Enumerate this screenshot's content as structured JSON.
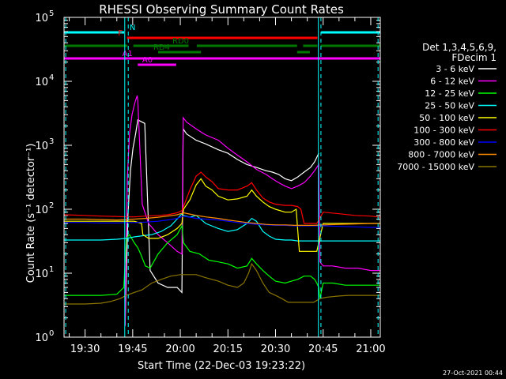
{
  "chart_data": {
    "type": "line",
    "title": "RHESSI Observing Summary Count Rates",
    "xlabel": "Start Time (22-Dec-03 19:23:22)",
    "ylabel": "Count Rate (s⁻¹ detector⁻¹)",
    "y_scale": "log",
    "ylim": [
      1,
      100000
    ],
    "xlim_minutes_of_day": [
      1163.37,
      1263.0
    ],
    "x_ticks": [
      {
        "label": "19:30",
        "m": 1170
      },
      {
        "label": "19:45",
        "m": 1185
      },
      {
        "label": "20:00",
        "m": 1200
      },
      {
        "label": "20:15",
        "m": 1215
      },
      {
        "label": "20:30",
        "m": 1230
      },
      {
        "label": "20:45",
        "m": 1245
      },
      {
        "label": "21:00",
        "m": 1260
      }
    ],
    "y_ticks": [
      {
        "base": "10",
        "exp": "0",
        "v": 1
      },
      {
        "base": "10",
        "exp": "1",
        "v": 10
      },
      {
        "base": "10",
        "exp": "2",
        "v": 100
      },
      {
        "base": "10",
        "exp": "3",
        "v": 1000
      },
      {
        "base": "10",
        "exp": "4",
        "v": 10000
      },
      {
        "base": "10",
        "exp": "5",
        "v": 100000
      }
    ],
    "legend_header": [
      "Det 1,3,4,5,6,9,",
      "FDecim 1"
    ],
    "series": [
      {
        "name": "3 - 6 keV",
        "color": "#ffffff",
        "x": [
          1182.6,
          1183.5,
          1184.3,
          1185.1,
          1185.9,
          1186.6,
          1188.8,
          1190.5,
          1193,
          1196,
          1199,
          1200.5,
          1200.9,
          1202,
          1205,
          1208,
          1212,
          1215,
          1218,
          1221,
          1224,
          1227,
          1229,
          1231,
          1233,
          1235,
          1237,
          1239,
          1241,
          1242.3,
          1243,
          1243.6
        ],
        "y": [
          1.5,
          80,
          400,
          900,
          1500,
          2500,
          2200,
          11,
          7,
          6,
          6,
          5,
          1800,
          1500,
          1200,
          1050,
          850,
          750,
          600,
          500,
          450,
          400,
          380,
          350,
          300,
          280,
          320,
          380,
          450,
          550,
          650,
          750
        ]
      },
      {
        "name": "6 - 12 keV",
        "color": "#ff00ff",
        "x": [
          1182.6,
          1183.3,
          1184,
          1184.8,
          1185.6,
          1186.4,
          1186.6,
          1188,
          1190,
          1193,
          1196,
          1199,
          1200.5,
          1200.9,
          1202,
          1205,
          1208,
          1212,
          1215,
          1218,
          1221,
          1224,
          1227,
          1229,
          1231,
          1233,
          1235,
          1237,
          1239,
          1241,
          1242.3,
          1243,
          1243.6,
          1244,
          1245,
          1248,
          1252,
          1256,
          1260,
          1263
        ],
        "y": [
          1.5,
          300,
          1500,
          3000,
          4500,
          6000,
          5000,
          120,
          60,
          40,
          30,
          22,
          20,
          2700,
          2300,
          1800,
          1450,
          1200,
          900,
          700,
          550,
          420,
          350,
          300,
          260,
          230,
          210,
          230,
          260,
          330,
          400,
          450,
          500,
          15,
          13,
          13,
          12,
          12,
          11,
          11
        ]
      },
      {
        "name": "12 - 25 keV",
        "color": "#00ff00",
        "x": [
          1163.37,
          1170,
          1175,
          1180,
          1182.2,
          1183,
          1184,
          1185.5,
          1186.6,
          1187.5,
          1189,
          1190.5,
          1193,
          1196,
          1199,
          1200.5,
          1201,
          1203,
          1206,
          1209,
          1212,
          1215,
          1218,
          1221,
          1222.5,
          1224,
          1226,
          1228,
          1230,
          1233,
          1235,
          1237,
          1239,
          1241,
          1242.3,
          1243,
          1243.6,
          1244,
          1245,
          1248,
          1252,
          1256,
          1260,
          1263
        ],
        "y": [
          4.5,
          4.5,
          4.5,
          4.7,
          6,
          35,
          40,
          30,
          25,
          20,
          13,
          12,
          20,
          30,
          40,
          55,
          30,
          22,
          20,
          16,
          15,
          14,
          12,
          13,
          17,
          14,
          11,
          9,
          7.5,
          7,
          7.5,
          8,
          9,
          9,
          8,
          7,
          6,
          4,
          7,
          7,
          6.5,
          6.5,
          6.5,
          6.5
        ]
      },
      {
        "name": "25 - 50 keV",
        "color": "#00ffff",
        "x": [
          1163.37,
          1170,
          1175,
          1180,
          1183,
          1185.5,
          1189,
          1191,
          1194,
          1197,
          1199,
          1200.5,
          1201,
          1203,
          1205,
          1208,
          1212,
          1215,
          1218,
          1221,
          1222.5,
          1224,
          1226,
          1228,
          1230,
          1233,
          1235,
          1237,
          1239,
          1241,
          1243,
          1245,
          1250,
          1255,
          1260,
          1263
        ],
        "y": [
          33,
          33,
          33,
          34,
          35,
          37,
          39,
          40,
          45,
          55,
          70,
          85,
          80,
          75,
          80,
          60,
          50,
          45,
          48,
          60,
          72,
          65,
          45,
          38,
          34,
          33,
          33,
          32,
          32,
          32,
          32,
          32,
          32,
          32,
          32,
          32
        ]
      },
      {
        "name": "50 - 100 keV",
        "color": "#ffff00",
        "x": [
          1163.37,
          1170,
          1175,
          1180,
          1183,
          1185.5,
          1187.8,
          1188.2,
          1190,
          1193,
          1196,
          1199,
          1200.5,
          1201,
          1203,
          1205,
          1206.5,
          1208,
          1210,
          1212,
          1215,
          1218,
          1221,
          1222.5,
          1224,
          1226,
          1228,
          1230,
          1233,
          1235,
          1236.5,
          1237.5,
          1239,
          1241,
          1243,
          1245,
          1250,
          1255,
          1260,
          1263
        ],
        "y": [
          65,
          65,
          65,
          65,
          65,
          65,
          60,
          40,
          35,
          35,
          40,
          50,
          60,
          100,
          140,
          240,
          300,
          230,
          200,
          160,
          140,
          145,
          160,
          200,
          160,
          130,
          110,
          100,
          90,
          90,
          100,
          22,
          22,
          22,
          22,
          60,
          60,
          60,
          60,
          60
        ]
      },
      {
        "name": "100 - 300 keV",
        "color": "#ff0000",
        "x": [
          1163.37,
          1170,
          1175,
          1180,
          1183,
          1185.5,
          1189,
          1193,
          1196,
          1199,
          1200.5,
          1201,
          1203,
          1205,
          1206.5,
          1208,
          1210,
          1212,
          1215,
          1218,
          1221,
          1222.5,
          1224,
          1226,
          1228,
          1230,
          1233,
          1235,
          1237,
          1238,
          1239,
          1241,
          1243,
          1245,
          1250,
          1255,
          1260,
          1263
        ],
        "y": [
          82,
          80,
          78,
          77,
          76,
          76,
          78,
          80,
          82,
          88,
          95,
          110,
          200,
          330,
          380,
          320,
          270,
          210,
          200,
          200,
          230,
          260,
          200,
          150,
          130,
          120,
          115,
          115,
          110,
          100,
          60,
          60,
          60,
          90,
          85,
          80,
          78,
          75
        ]
      },
      {
        "name": "300 - 800 keV",
        "color": "#0000ff",
        "x": [
          1163.37,
          1170,
          1175,
          1180,
          1183,
          1185.5,
          1189,
          1193,
          1196,
          1199,
          1201,
          1203,
          1205,
          1208,
          1212,
          1215,
          1218,
          1221,
          1224,
          1227,
          1230,
          1233,
          1236,
          1239,
          1242,
          1245,
          1250,
          1255,
          1260,
          1263
        ],
        "y": [
          62,
          62,
          61,
          61,
          62,
          62,
          63,
          65,
          68,
          72,
          78,
          75,
          72,
          70,
          68,
          65,
          62,
          60,
          58,
          57,
          56,
          56,
          55,
          55,
          55,
          55,
          54,
          53,
          52,
          52
        ]
      },
      {
        "name": "800 - 7000 keV",
        "color": "#ff8c00",
        "x": [
          1163.37,
          1170,
          1175,
          1180,
          1183,
          1185.5,
          1189,
          1193,
          1196,
          1199,
          1201,
          1203,
          1205,
          1208,
          1212,
          1215,
          1218,
          1221,
          1224,
          1227,
          1230,
          1233,
          1236,
          1239,
          1242,
          1245,
          1250,
          1255,
          1260,
          1263
        ],
        "y": [
          70,
          70,
          69,
          68,
          69,
          70,
          72,
          75,
          78,
          82,
          88,
          84,
          80,
          76,
          72,
          68,
          65,
          62,
          60,
          58,
          57,
          57,
          56,
          56,
          56,
          57,
          58,
          59,
          60,
          60
        ]
      },
      {
        "name": "7000 - 15000 keV",
        "color": "#8b7500",
        "x": [
          1163.37,
          1170,
          1175,
          1178,
          1181,
          1183,
          1185.5,
          1188,
          1191,
          1194,
          1197,
          1200,
          1202,
          1205,
          1208,
          1212,
          1215,
          1218,
          1220,
          1221.5,
          1222.5,
          1224,
          1226,
          1228,
          1230,
          1232,
          1234,
          1236,
          1238,
          1240,
          1242,
          1244,
          1246,
          1248,
          1250,
          1253,
          1256,
          1260,
          1263
        ],
        "y": [
          3.3,
          3.3,
          3.4,
          3.6,
          4,
          4.5,
          5,
          5.5,
          7,
          8,
          9,
          9.5,
          9.5,
          9.5,
          8.5,
          7.5,
          6.5,
          6,
          7,
          10,
          14,
          11,
          7,
          5,
          4.5,
          4,
          3.5,
          3.5,
          3.5,
          3.5,
          3.5,
          4,
          4.2,
          4.3,
          4.4,
          4.5,
          4.5,
          4.5,
          4.5
        ]
      }
    ],
    "attenuator_events": [
      {
        "color": "#00ffff",
        "m": 1182.5
      },
      {
        "color": "#00ffff",
        "m": 1243.5
      }
    ],
    "saa_markers": [
      {
        "color": "#00ffff",
        "m": 1163.9
      },
      {
        "color": "#00ffff",
        "m": 1183.6
      },
      {
        "color": "#00ffff",
        "m": 1244.3
      },
      {
        "color": "#00ffff",
        "m": 1262.3
      }
    ],
    "flag_bars": [
      {
        "label": "N",
        "color": "#00ffff",
        "segments": [
          [
            1163.37,
            1182.3
          ],
          [
            1244.4,
            1263
          ]
        ]
      },
      {
        "label": "F",
        "color": "#ff0000",
        "segments": [
          [
            1183.2,
            1243.2
          ]
        ]
      },
      {
        "label": "RD0",
        "color": "#007800",
        "segments": [
          [
            1163.37,
            1183.3
          ],
          [
            1185.2,
            1202.6
          ],
          [
            1205.2,
            1236.8
          ],
          [
            1238.7,
            1243.2
          ],
          [
            1244.2,
            1263
          ]
        ]
      },
      {
        "label": "RD4",
        "color": "#007800",
        "segments": [
          [
            1193.0,
            1206.5
          ],
          [
            1236.8,
            1240.8
          ]
        ]
      },
      {
        "label": "A0",
        "color": "#ff00ff",
        "segments": [
          [
            1186.6,
            1198.7
          ]
        ]
      },
      {
        "label": "A1",
        "color": "#ff00ff",
        "segments": [
          [
            1163.37,
            1263
          ]
        ]
      }
    ],
    "footer_date": "27-Oct-2021 00:44"
  }
}
